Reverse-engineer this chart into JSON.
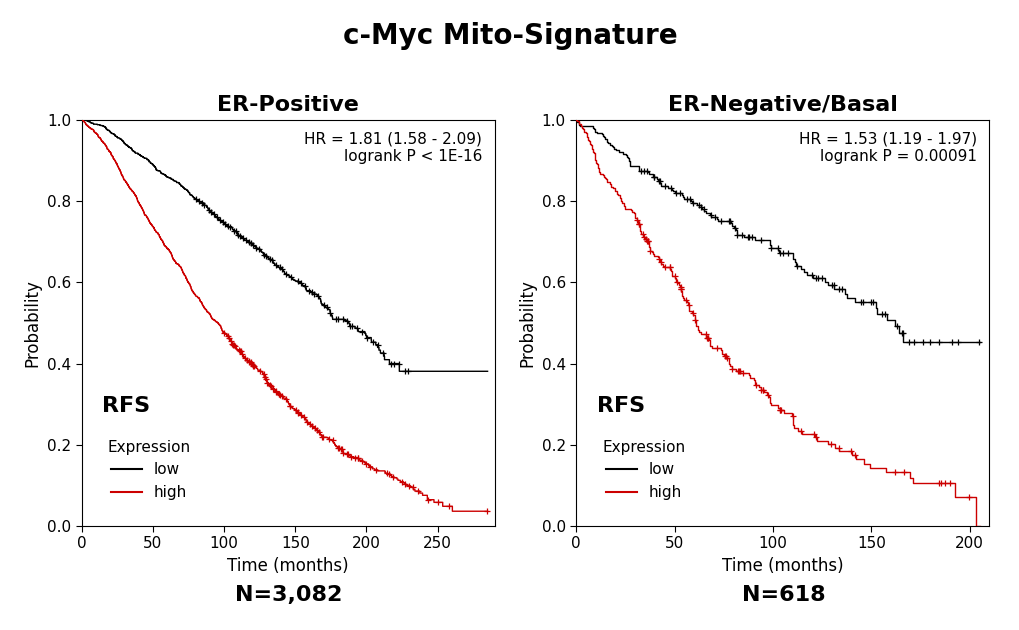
{
  "title": "c-Myc Mito-Signature",
  "title_fontsize": 20,
  "title_fontweight": "bold",
  "left_subtitle": "ER-Positive",
  "right_subtitle": "ER-Negative/Basal",
  "subtitle_fontsize": 16,
  "subtitle_fontweight": "bold",
  "left_n": "N=3,082",
  "right_n": "N=618",
  "n_fontsize": 16,
  "n_fontweight": "bold",
  "ylabel": "Probability",
  "xlabel": "Time (months)",
  "rfs_label": "RFS",
  "rfs_fontsize": 16,
  "rfs_fontweight": "bold",
  "legend_title": "Expression",
  "legend_low": "low",
  "legend_high": "high",
  "axis_label_fontsize": 12,
  "tick_fontsize": 11,
  "legend_fontsize": 11,
  "left_annotation": "HR = 1.81 (1.58 - 2.09)\nlogrank P < 1E-16",
  "right_annotation": "HR = 1.53 (1.19 - 1.97)\nlogrank P = 0.00091",
  "annotation_fontsize": 11,
  "left_xlim": [
    0,
    290
  ],
  "right_xlim": [
    0,
    210
  ],
  "ylim": [
    0.0,
    1.0
  ],
  "yticks": [
    0.0,
    0.2,
    0.4,
    0.6,
    0.8,
    1.0
  ],
  "left_xticks": [
    0,
    50,
    100,
    150,
    200,
    250
  ],
  "right_xticks": [
    0,
    50,
    100,
    150,
    200
  ],
  "low_color": "#000000",
  "high_color": "#CC0000",
  "bg_color": "#FFFFFF"
}
